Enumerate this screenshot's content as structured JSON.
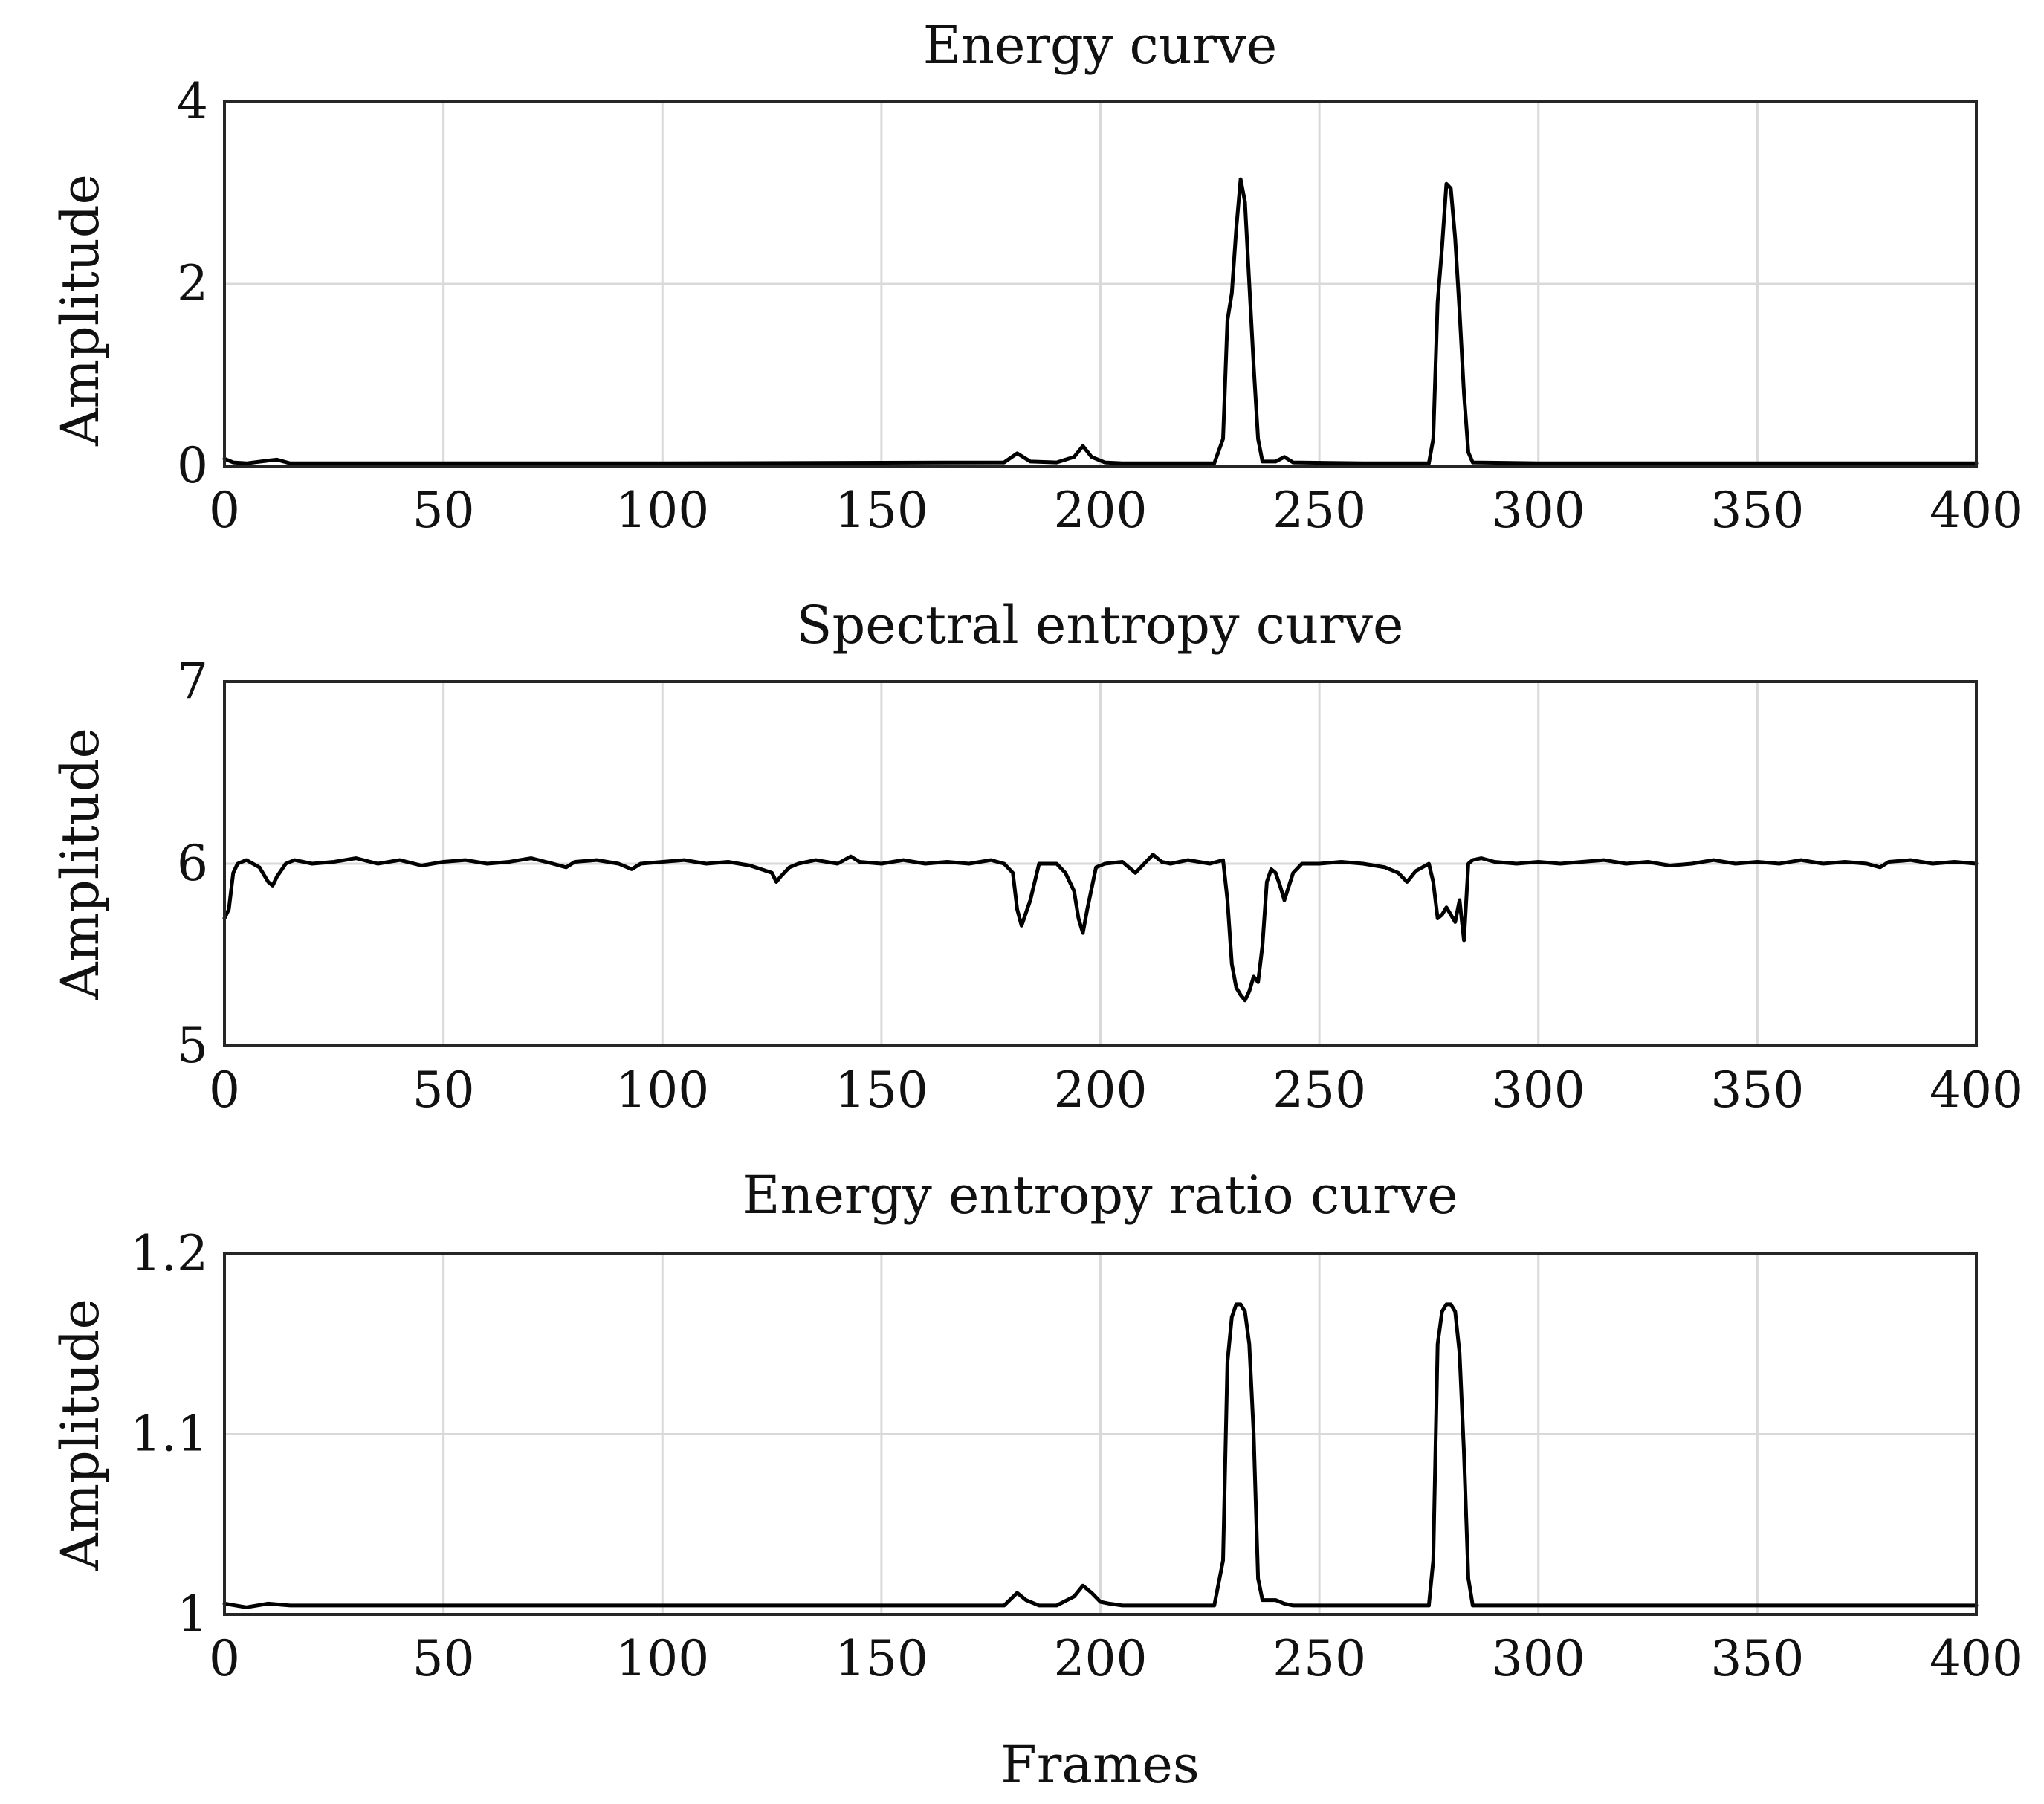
{
  "chart_data": [
    {
      "type": "line",
      "title": "Energy curve",
      "xlabel": "",
      "ylabel": "Amplitude",
      "xlim": [
        0,
        400
      ],
      "ylim": [
        0,
        4
      ],
      "xticks": [
        0,
        50,
        100,
        150,
        200,
        250,
        300,
        350,
        400
      ],
      "yticks": [
        0,
        2,
        4
      ],
      "ytick_labels": [
        "0",
        "2",
        "4"
      ],
      "grid": true,
      "series": [
        {
          "name": "energy",
          "x": [
            0,
            2,
            5,
            10,
            12,
            15,
            100,
            178,
            181,
            184,
            190,
            194,
            196,
            198,
            201,
            205,
            226,
            228,
            229,
            230,
            231,
            232,
            233,
            234,
            235,
            236,
            237,
            240,
            242,
            244,
            260,
            275,
            276,
            277,
            278,
            279,
            280,
            281,
            282,
            283,
            284,
            285,
            300,
            400
          ],
          "y": [
            0.08,
            0.04,
            0.03,
            0.06,
            0.07,
            0.03,
            0.03,
            0.04,
            0.14,
            0.05,
            0.04,
            0.1,
            0.22,
            0.1,
            0.04,
            0.03,
            0.03,
            0.3,
            1.6,
            1.9,
            2.6,
            3.15,
            2.9,
            2.0,
            1.1,
            0.3,
            0.05,
            0.05,
            0.1,
            0.04,
            0.03,
            0.03,
            0.3,
            1.8,
            2.4,
            3.1,
            3.05,
            2.5,
            1.7,
            0.8,
            0.15,
            0.04,
            0.03,
            0.03
          ]
        }
      ]
    },
    {
      "type": "line",
      "title": "Spectral entropy curve",
      "xlabel": "",
      "ylabel": "Amplitude",
      "xlim": [
        0,
        400
      ],
      "ylim": [
        5,
        7
      ],
      "xticks": [
        0,
        50,
        100,
        150,
        200,
        250,
        300,
        350,
        400
      ],
      "yticks": [
        5,
        6,
        7
      ],
      "ytick_labels": [
        "5",
        "6",
        "7"
      ],
      "grid": true,
      "series": [
        {
          "name": "spectral entropy",
          "x": [
            0,
            1,
            2,
            3,
            5,
            8,
            10,
            11,
            12,
            14,
            16,
            20,
            25,
            30,
            35,
            40,
            45,
            50,
            55,
            60,
            65,
            70,
            75,
            78,
            80,
            85,
            90,
            93,
            95,
            100,
            105,
            110,
            115,
            120,
            125,
            126,
            127,
            129,
            131,
            135,
            140,
            143,
            145,
            150,
            155,
            160,
            165,
            170,
            175,
            178,
            180,
            181,
            182,
            184,
            186,
            190,
            192,
            194,
            195,
            196,
            197,
            199,
            201,
            205,
            208,
            210,
            212,
            214,
            216,
            220,
            225,
            228,
            229,
            230,
            231,
            232,
            233,
            234,
            235,
            236,
            237,
            238,
            239,
            240,
            241,
            242,
            244,
            246,
            250,
            255,
            260,
            265,
            268,
            270,
            272,
            275,
            276,
            277,
            278,
            279,
            280,
            281,
            282,
            283,
            284,
            285,
            287,
            290,
            295,
            300,
            305,
            310,
            315,
            320,
            325,
            330,
            335,
            340,
            345,
            350,
            355,
            360,
            365,
            370,
            375,
            378,
            380,
            385,
            390,
            395,
            400
          ],
          "y": [
            5.7,
            5.75,
            5.95,
            6.0,
            6.02,
            5.98,
            5.9,
            5.88,
            5.93,
            6.0,
            6.02,
            6.0,
            6.01,
            6.03,
            6.0,
            6.02,
            5.99,
            6.01,
            6.02,
            6.0,
            6.01,
            6.03,
            6.0,
            5.98,
            6.01,
            6.02,
            6.0,
            5.97,
            6.0,
            6.01,
            6.02,
            6.0,
            6.01,
            5.99,
            5.95,
            5.9,
            5.93,
            5.98,
            6.0,
            6.02,
            6.0,
            6.04,
            6.01,
            6.0,
            6.02,
            6.0,
            6.01,
            6.0,
            6.02,
            6.0,
            5.95,
            5.75,
            5.66,
            5.8,
            6.0,
            6.0,
            5.95,
            5.85,
            5.7,
            5.62,
            5.75,
            5.98,
            6.0,
            6.01,
            5.95,
            6.0,
            6.05,
            6.01,
            6.0,
            6.02,
            6.0,
            6.02,
            5.8,
            5.45,
            5.32,
            5.28,
            5.25,
            5.3,
            5.38,
            5.35,
            5.55,
            5.9,
            5.97,
            5.95,
            5.88,
            5.8,
            5.95,
            6.0,
            6.0,
            6.01,
            6.0,
            5.98,
            5.95,
            5.9,
            5.96,
            6.0,
            5.9,
            5.7,
            5.72,
            5.76,
            5.72,
            5.68,
            5.8,
            5.58,
            6.0,
            6.02,
            6.03,
            6.01,
            6.0,
            6.01,
            6.0,
            6.01,
            6.02,
            6.0,
            6.01,
            5.99,
            6.0,
            6.02,
            6.0,
            6.01,
            6.0,
            6.02,
            6.0,
            6.01,
            6.0,
            5.98,
            6.01,
            6.02,
            6.0,
            6.01,
            6.0
          ]
        }
      ]
    },
    {
      "type": "line",
      "title": "Energy entropy ratio curve",
      "xlabel": "Frames",
      "ylabel": "Amplitude",
      "xlim": [
        0,
        400
      ],
      "ylim": [
        1.0,
        1.2
      ],
      "xticks": [
        0,
        50,
        100,
        150,
        200,
        250,
        300,
        350,
        400
      ],
      "yticks": [
        1.0,
        1.1,
        1.2
      ],
      "ytick_labels": [
        "1",
        "1.1",
        "1.2"
      ],
      "grid": true,
      "series": [
        {
          "name": "energy entropy ratio",
          "x": [
            0,
            5,
            10,
            15,
            100,
            178,
            181,
            183,
            186,
            190,
            194,
            196,
            198,
            200,
            202,
            205,
            226,
            228,
            229,
            230,
            231,
            232,
            233,
            234,
            235,
            236,
            237,
            240,
            242,
            244,
            250,
            275,
            276,
            277,
            278,
            279,
            280,
            281,
            282,
            283,
            284,
            285,
            300,
            400
          ],
          "y": [
            1.006,
            1.004,
            1.006,
            1.005,
            1.005,
            1.005,
            1.012,
            1.008,
            1.005,
            1.005,
            1.01,
            1.016,
            1.012,
            1.007,
            1.006,
            1.005,
            1.005,
            1.03,
            1.14,
            1.165,
            1.172,
            1.172,
            1.168,
            1.15,
            1.1,
            1.02,
            1.008,
            1.008,
            1.006,
            1.005,
            1.005,
            1.005,
            1.03,
            1.15,
            1.168,
            1.172,
            1.172,
            1.168,
            1.145,
            1.09,
            1.02,
            1.005,
            1.005,
            1.005
          ]
        }
      ]
    }
  ]
}
